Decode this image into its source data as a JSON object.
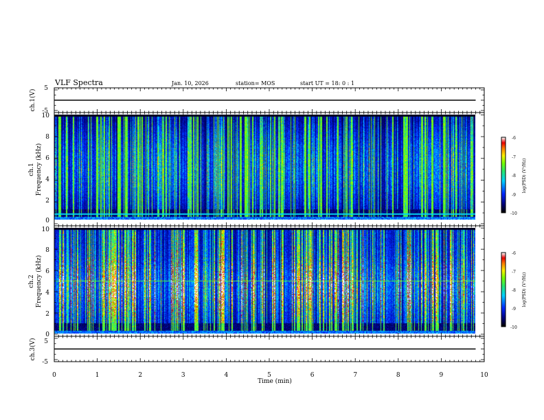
{
  "header": {
    "title": "VLF Spectra",
    "date": "Jan. 10, 2026",
    "station": "station= MOS",
    "start": "start  UT =   18: 0  : 1"
  },
  "chart_data": [
    {
      "type": "line",
      "panel": "ch1-waveform",
      "ylabel": "ch.1(V)",
      "ylim": [
        -5,
        5
      ],
      "yticks": [
        "5",
        "-5"
      ],
      "series": [
        {
          "x": [
            0,
            9.8
          ],
          "y": [
            0,
            0
          ]
        }
      ]
    },
    {
      "type": "heatmap",
      "panel": "ch1-spectrogram",
      "ylabel_top": "ch.1",
      "ylabel": "Frequency (kHz)",
      "ylim": [
        0,
        10
      ],
      "yticks": [
        "0",
        "2",
        "4",
        "6",
        "8",
        "10"
      ],
      "xlim": [
        0,
        10
      ],
      "data_extent_x": [
        0,
        9.8
      ],
      "colorbar": {
        "label": "log(PSD) (V²/Hz)",
        "range": [
          -10,
          -6
        ],
        "ticks": [
          "-6",
          "-7",
          "-8",
          "-9",
          "-10"
        ]
      }
    },
    {
      "type": "heatmap",
      "panel": "ch2-spectrogram",
      "ylabel_top": "ch.2",
      "ylabel": "Frequency (kHz)",
      "ylim": [
        0,
        10
      ],
      "yticks": [
        "0",
        "2",
        "4",
        "6",
        "8",
        "10"
      ],
      "xlim": [
        0,
        10
      ],
      "data_extent_x": [
        0,
        9.8
      ],
      "colorbar": {
        "label": "log(PSD) (V²/Hz)",
        "range": [
          -10,
          -6
        ],
        "ticks": [
          "-6",
          "-7",
          "-8",
          "-9",
          "-10"
        ]
      }
    },
    {
      "type": "line",
      "panel": "ch3-waveform",
      "ylabel": "ch.3(V)",
      "ylim": [
        -5,
        5
      ],
      "yticks": [
        "5",
        "-5"
      ],
      "series": [
        {
          "x": [
            0,
            9.8
          ],
          "y": [
            0,
            0
          ]
        }
      ]
    }
  ],
  "x_axis": {
    "label": "Time  (min)",
    "range": [
      0,
      10
    ],
    "ticks": [
      "0",
      "1",
      "2",
      "3",
      "4",
      "5",
      "6",
      "7",
      "8",
      "9",
      "10"
    ]
  }
}
